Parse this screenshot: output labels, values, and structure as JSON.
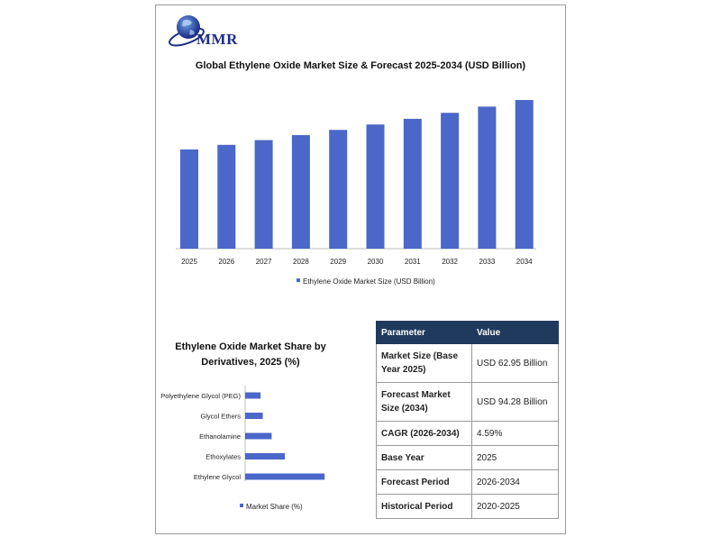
{
  "logo": {
    "text": "MMR"
  },
  "chart_data": [
    {
      "type": "bar",
      "title": "Global Ethylene Oxide Market Size & Forecast 2025-2034 (USD Billion)",
      "categories": [
        "2025",
        "2026",
        "2027",
        "2028",
        "2029",
        "2030",
        "2031",
        "2032",
        "2033",
        "2034"
      ],
      "series": [
        {
          "name": "Ethylene Oxide Market Size (USD Billion)",
          "values": [
            62.95,
            65.84,
            68.85,
            72.0,
            75.3,
            78.75,
            82.36,
            86.15,
            90.1,
            94.28
          ]
        }
      ],
      "ylim": [
        0,
        100
      ],
      "grid": false,
      "legend": "bottom",
      "color": "#4a67c9"
    },
    {
      "type": "bar",
      "orientation": "horizontal",
      "title": "Ethylene Oxide Market Share by Derivatives, 2025 (%)",
      "categories": [
        "Polyethylene Glycol (PEG)",
        "Glycol Ethers",
        "Ethanolamine",
        "Ethoxylates",
        "Ethylene Glycol"
      ],
      "series": [
        {
          "name": "Market Share (%)",
          "values": [
            7,
            8,
            12,
            18,
            36
          ]
        }
      ],
      "xlim": [
        0,
        40
      ],
      "legend": "bottom",
      "color": "#4a67c9"
    }
  ],
  "table": {
    "headers": [
      "Parameter",
      "Value"
    ],
    "rows": [
      [
        "Market Size (Base Year 2025)",
        "USD 62.95 Billion"
      ],
      [
        "Forecast Market Size (2034)",
        "USD 94.28 Billion"
      ],
      [
        "CAGR (2026-2034)",
        "4.59%"
      ],
      [
        "Base Year",
        "2025"
      ],
      [
        "Forecast Period",
        "2026-2034"
      ],
      [
        "Historical Period",
        "2020-2025"
      ]
    ]
  }
}
